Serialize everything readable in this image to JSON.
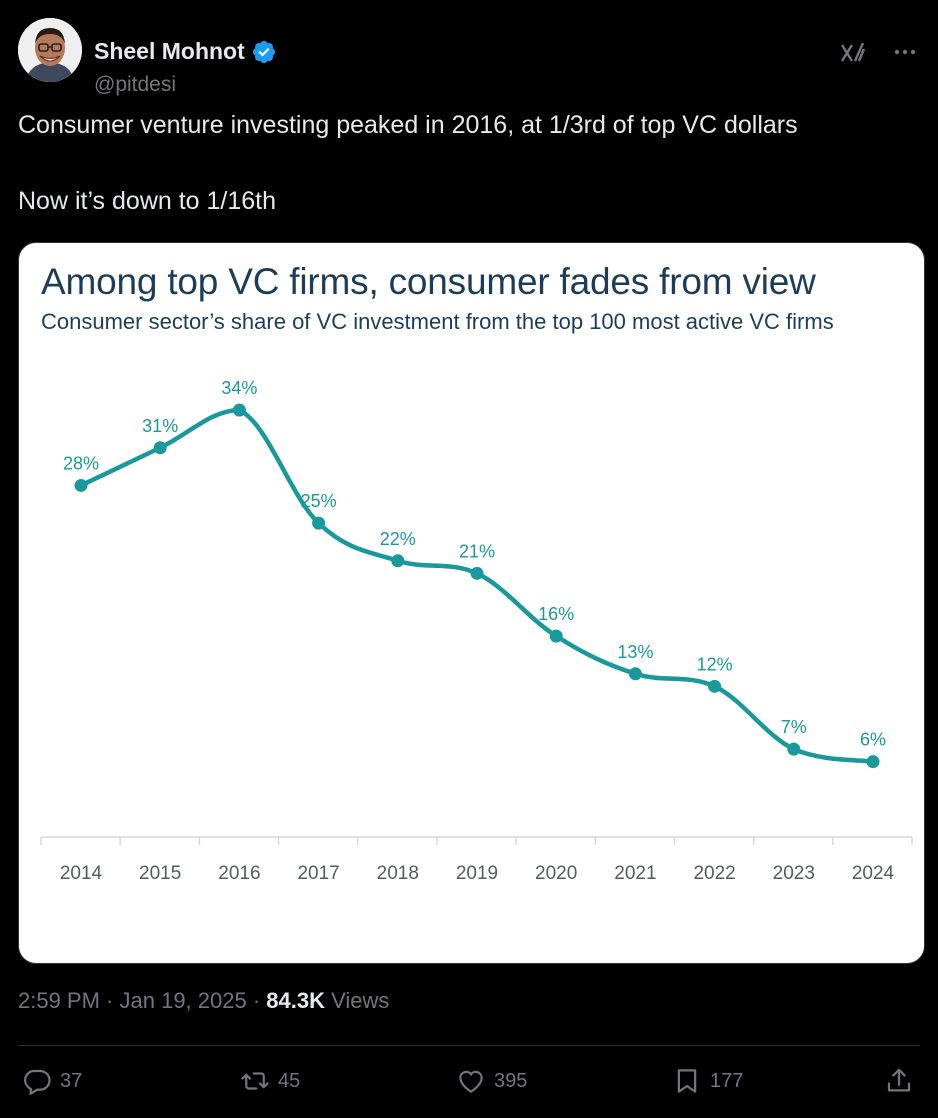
{
  "author": {
    "name": "Sheel Mohnot",
    "handle": "@pitdesi"
  },
  "icons": [
    "avatar",
    "verified-badge-icon",
    "grok-icon",
    "more-icon",
    "reply-icon",
    "retweet-icon",
    "like-icon",
    "bookmark-icon",
    "share-icon"
  ],
  "colors": {
    "background": "#000000",
    "text": "#e7e9ea",
    "muted": "#71767b",
    "verified": "#1d9bf0",
    "chart_line": "#19999b",
    "chart_title": "#1c3d5a"
  },
  "tweet": {
    "line1": "Consumer venture investing peaked in 2016, at 1/3rd of top VC dollars",
    "line2": "Now it’s down to 1/16th"
  },
  "meta": {
    "time": "2:59 PM",
    "sep1": " · ",
    "date": "Jan 19, 2025",
    "sep2": " · ",
    "views_count": "84.3K",
    "views_label": " Views"
  },
  "actions": {
    "replies": "37",
    "reposts": "45",
    "likes": "395",
    "bookmarks": "177"
  },
  "chart_data": {
    "type": "line",
    "title": "Among top VC firms, consumer fades from view",
    "subtitle": "Consumer sector’s share of VC investment from the top 100 most active VC firms",
    "categories": [
      "2014",
      "2015",
      "2016",
      "2017",
      "2018",
      "2019",
      "2020",
      "2021",
      "2022",
      "2023",
      "2024"
    ],
    "values": [
      28,
      31,
      34,
      25,
      22,
      21,
      16,
      13,
      12,
      7,
      6
    ],
    "data_labels": [
      "28%",
      "31%",
      "34%",
      "25%",
      "22%",
      "21%",
      "16%",
      "13%",
      "12%",
      "7%",
      "6%"
    ],
    "xlabel": "",
    "ylabel": "",
    "ylim": [
      0,
      36
    ],
    "grid": false,
    "legend": "none",
    "line_style": "smooth with markers"
  }
}
